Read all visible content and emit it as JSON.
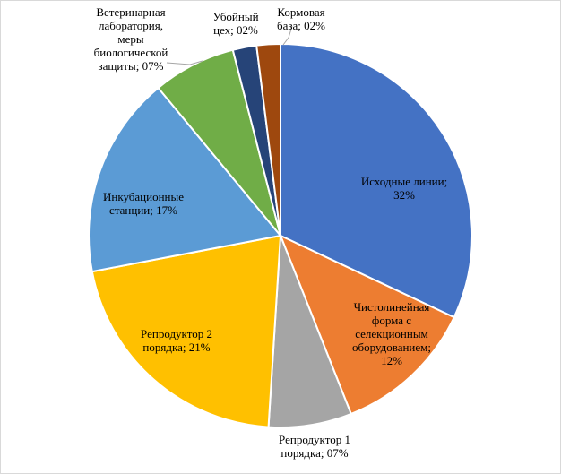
{
  "chart_data": {
    "type": "pie",
    "title": "",
    "start": "12 o'clock",
    "direction": "clockwise",
    "legend": "none",
    "slices": [
      {
        "label": "Исходные линии",
        "value": 32,
        "display": "32%",
        "color": "#4472C4",
        "label_lines": [
          "Исходные линии;",
          "32%"
        ]
      },
      {
        "label": "Чистолинейная форма с селекционным оборудованием",
        "value": 12,
        "display": "12%",
        "color": "#ED7D31",
        "label_lines": [
          "Чистолинейная",
          "форма с",
          "селекционным",
          "оборудованием;",
          "12%"
        ]
      },
      {
        "label": "Репродуктор 1 порядка",
        "value": 7,
        "display": "07%",
        "color": "#A5A5A5",
        "label_lines": [
          "Репродуктор 1",
          "порядка; 07%"
        ]
      },
      {
        "label": "Репродуктор 2 порядка",
        "value": 21,
        "display": "21%",
        "color": "#FFC000",
        "label_lines": [
          "Репродуктор 2",
          "порядка; 21%"
        ]
      },
      {
        "label": "Инкубационные станции",
        "value": 17,
        "display": "17%",
        "color": "#5B9BD5",
        "label_lines": [
          "Инкубационные",
          "станции; 17%"
        ]
      },
      {
        "label": "Ветеринарная лаборатория, меры биологической защиты",
        "value": 7,
        "display": "07%",
        "color": "#70AD47",
        "label_lines": [
          "Ветеринарная",
          "лаборатория,",
          "меры",
          "биологической",
          "защиты; 07%"
        ]
      },
      {
        "label": "Убойный цех",
        "value": 2,
        "display": "02%",
        "color": "#264478",
        "label_lines": [
          "Убойный",
          "цех; 02%"
        ]
      },
      {
        "label": "Кормовая база",
        "value": 2,
        "display": "02%",
        "color": "#9E480E",
        "label_lines": [
          "Кормовая",
          "база; 02%"
        ]
      }
    ]
  }
}
